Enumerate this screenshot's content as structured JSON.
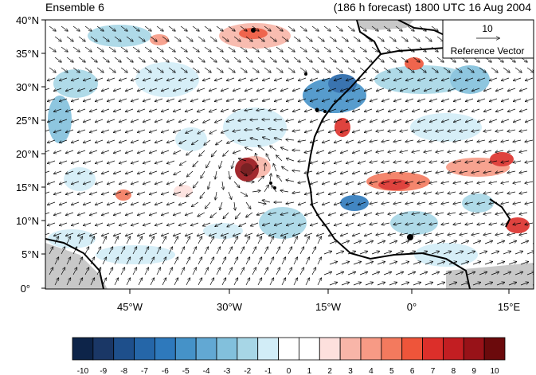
{
  "header": {
    "left_title": "Ensemble 6",
    "right_title": "(186 h forecast) 1800 UTC 16 Aug 2004"
  },
  "map": {
    "lat_labels": [
      "40°N",
      "35°N",
      "30°N",
      "25°N",
      "20°N",
      "15°N",
      "10°N",
      "5°N",
      "0°"
    ],
    "lon_labels": [
      "45°W",
      "30°W",
      "15°W",
      "0°",
      "15°E"
    ],
    "reference_vector": {
      "value": "10",
      "label": "Reference Vector"
    },
    "colors": {
      "land_outline": "#000000",
      "missing_land": "#c8c8c8",
      "vector": "#000000"
    }
  },
  "colorbar": {
    "labels": [
      "-10",
      "-9",
      "-8",
      "-7",
      "-6",
      "-5",
      "-4",
      "-3",
      "-2",
      "-1",
      "0",
      "1",
      "2",
      "3",
      "4",
      "5",
      "6",
      "7",
      "8",
      "9",
      "10"
    ],
    "colors": [
      "#0d2449",
      "#1a3766",
      "#1e4f8b",
      "#2566a8",
      "#2e79bc",
      "#4592c8",
      "#62a8d3",
      "#82c0dc",
      "#a7d6e6",
      "#d2edf7",
      "#ffffff",
      "#ffffff",
      "#fde0dd",
      "#f8b5a8",
      "#f79a85",
      "#f37a5e",
      "#ee553a",
      "#dc2f2a",
      "#c21e22",
      "#981218",
      "#6b0a0c"
    ]
  }
}
